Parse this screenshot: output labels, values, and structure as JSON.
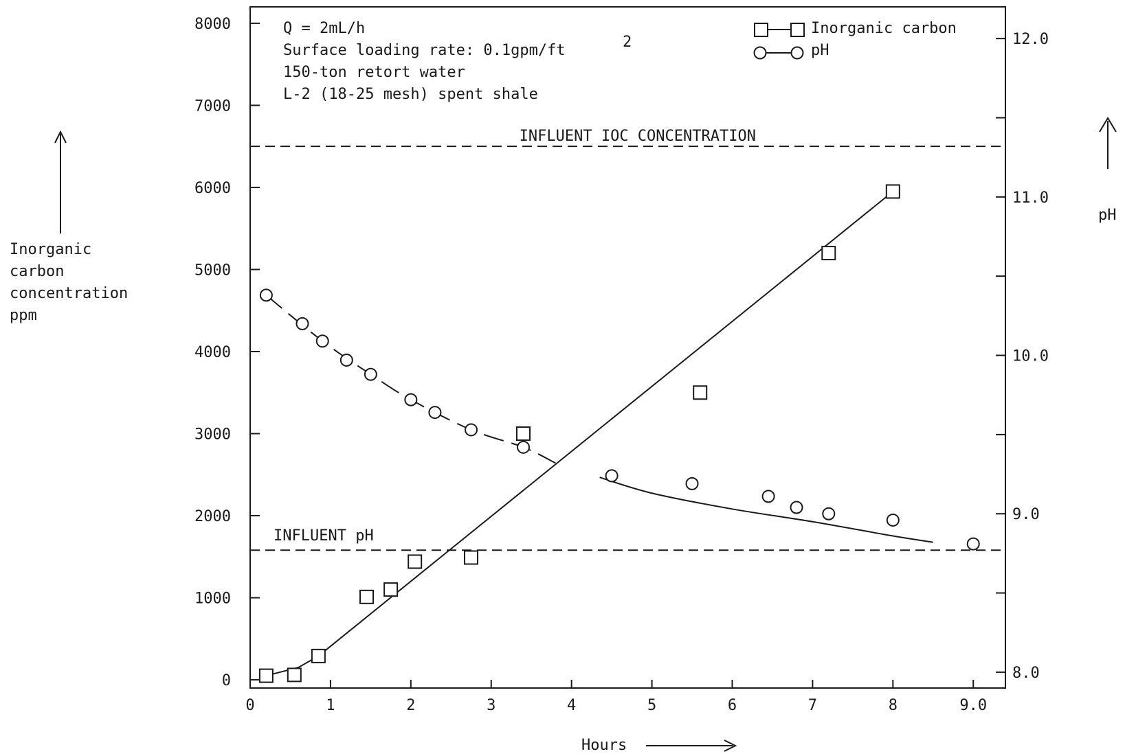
{
  "chart_data": {
    "type": "scatter",
    "x_axis": {
      "label": "Hours",
      "range": [
        0,
        9.4
      ],
      "ticks": [
        {
          "value": 0,
          "label": "0"
        },
        {
          "value": 1,
          "label": "1"
        },
        {
          "value": 2,
          "label": "2"
        },
        {
          "value": 3,
          "label": "3"
        },
        {
          "value": 4,
          "label": "4"
        },
        {
          "value": 5,
          "label": "5"
        },
        {
          "value": 6,
          "label": "6"
        },
        {
          "value": 7,
          "label": "7"
        },
        {
          "value": 8,
          "label": "8"
        },
        {
          "value": 9,
          "label": "9.0"
        }
      ]
    },
    "y_axis_left": {
      "label_lines": [
        "Inorganic",
        "carbon",
        "concentration",
        "ppm"
      ],
      "range": [
        -100,
        8200
      ],
      "ticks": [
        0,
        1000,
        2000,
        3000,
        4000,
        5000,
        6000,
        7000,
        8000
      ]
    },
    "y_axis_right": {
      "label": "pH",
      "range": [
        7.9,
        12.2
      ],
      "ticks": [
        8.0,
        8.5,
        9.0,
        9.5,
        10.0,
        10.5,
        11.0,
        11.5,
        12.0
      ],
      "tick_labels": [
        {
          "value": 8.0,
          "label": "8.0"
        },
        {
          "value": 9.0,
          "label": "9.0"
        },
        {
          "value": 10.0,
          "label": "10.0"
        },
        {
          "value": 11.0,
          "label": "11.0"
        },
        {
          "value": 12.0,
          "label": "12.0"
        }
      ]
    },
    "series": [
      {
        "name": "Inorganic carbon",
        "marker": "square",
        "axis": "left",
        "points": [
          {
            "x": 0.2,
            "y": 50
          },
          {
            "x": 0.55,
            "y": 60
          },
          {
            "x": 0.85,
            "y": 290
          },
          {
            "x": 1.45,
            "y": 1010
          },
          {
            "x": 1.75,
            "y": 1100
          },
          {
            "x": 2.05,
            "y": 1440
          },
          {
            "x": 2.75,
            "y": 1490
          },
          {
            "x": 3.4,
            "y": 3000
          },
          {
            "x": 5.6,
            "y": 3500
          },
          {
            "x": 7.2,
            "y": 5200
          },
          {
            "x": 8.0,
            "y": 5950
          }
        ],
        "fit_line": [
          {
            "x": 0.2,
            "y": 50
          },
          {
            "x": 0.6,
            "y": 150
          },
          {
            "x": 0.85,
            "y": 290
          },
          {
            "x": 8.0,
            "y": 5950
          }
        ]
      },
      {
        "name": "pH",
        "marker": "circle",
        "axis": "right",
        "points": [
          {
            "x": 0.2,
            "y": 10.38
          },
          {
            "x": 0.65,
            "y": 10.2
          },
          {
            "x": 0.9,
            "y": 10.09
          },
          {
            "x": 1.2,
            "y": 9.97
          },
          {
            "x": 1.5,
            "y": 9.88
          },
          {
            "x": 2.0,
            "y": 9.72
          },
          {
            "x": 2.3,
            "y": 9.64
          },
          {
            "x": 2.75,
            "y": 9.53
          },
          {
            "x": 3.4,
            "y": 9.42
          },
          {
            "x": 4.5,
            "y": 9.24
          },
          {
            "x": 5.5,
            "y": 9.19
          },
          {
            "x": 6.45,
            "y": 9.11
          },
          {
            "x": 6.8,
            "y": 9.04
          },
          {
            "x": 7.2,
            "y": 9.0
          },
          {
            "x": 8.0,
            "y": 8.96
          },
          {
            "x": 9.0,
            "y": 8.81
          }
        ],
        "fit_curve_1": [
          {
            "x": 0.2,
            "y": 10.38
          },
          {
            "x": 0.9,
            "y": 10.09
          },
          {
            "x": 1.5,
            "y": 9.88
          },
          {
            "x": 2.0,
            "y": 9.72
          },
          {
            "x": 2.75,
            "y": 9.53
          },
          {
            "x": 3.4,
            "y": 9.42
          },
          {
            "x": 3.8,
            "y": 9.32
          }
        ],
        "fit_curve_2": [
          {
            "x": 4.35,
            "y": 9.23
          },
          {
            "x": 5.0,
            "y": 9.13
          },
          {
            "x": 6.0,
            "y": 9.03
          },
          {
            "x": 7.0,
            "y": 8.95
          },
          {
            "x": 8.0,
            "y": 8.86
          },
          {
            "x": 8.5,
            "y": 8.82
          }
        ]
      }
    ],
    "reference_lines": [
      {
        "label": "INFLUENT IOC CONCENTRATION",
        "axis": "left",
        "value": 6500
      },
      {
        "label": "INFLUENT pH",
        "axis": "left",
        "value": 1580
      }
    ],
    "legend": {
      "placement": "top-right",
      "entries": [
        {
          "marker": "square",
          "label": "Inorganic carbon"
        },
        {
          "marker": "circle",
          "label": "pH"
        }
      ]
    },
    "annotations": [
      "Q = 2mL/h",
      "Surface loading rate: 0.1gpm/ft",
      "150-ton retort water",
      "L-2 (18-25 mesh) spent shale"
    ],
    "annotation_superscript": "2",
    "grid": false
  }
}
